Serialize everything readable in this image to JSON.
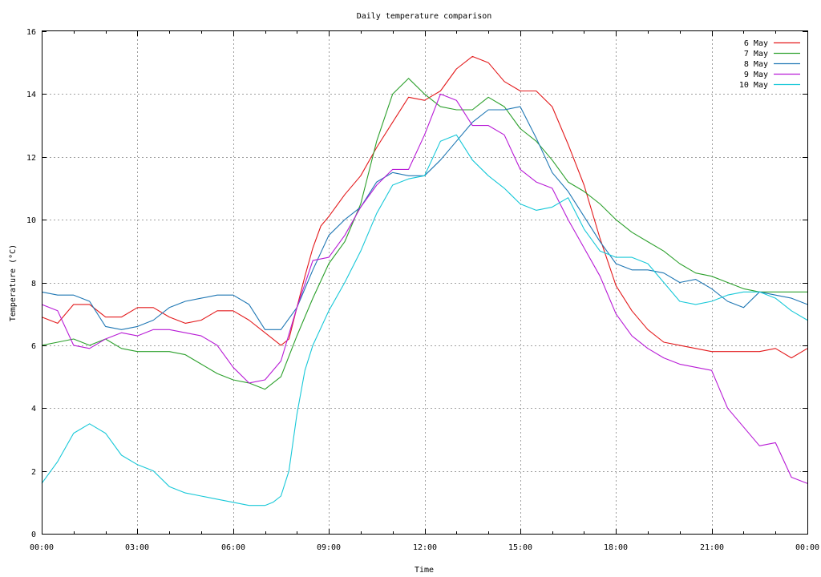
{
  "chart_data": {
    "type": "line",
    "title": "Daily temperature comparison",
    "xlabel": "Time",
    "ylabel": "Temperature (°C)",
    "xlim": [
      0,
      24
    ],
    "ylim": [
      0,
      16
    ],
    "x_ticks": [
      0,
      3,
      6,
      9,
      12,
      15,
      18,
      21,
      24
    ],
    "x_tick_labels": [
      "00:00",
      "03:00",
      "06:00",
      "09:00",
      "12:00",
      "15:00",
      "18:00",
      "21:00",
      "00:00"
    ],
    "y_ticks": [
      0,
      2,
      4,
      6,
      8,
      10,
      12,
      14,
      16
    ],
    "y_tick_labels": [
      "0",
      "2",
      "4",
      "6",
      "8",
      "10",
      "12",
      "14",
      "16"
    ],
    "grid": true,
    "legend_position": "top-right",
    "series": [
      {
        "name": "6 May",
        "color": "#e31a1c",
        "x": [
          0,
          0.5,
          1,
          1.5,
          2,
          2.5,
          3,
          3.5,
          4,
          4.5,
          5,
          5.5,
          6,
          6.5,
          7,
          7.5,
          7.75,
          8,
          8.25,
          8.5,
          8.75,
          9,
          9.5,
          10,
          10.5,
          11,
          11.5,
          12,
          12.5,
          13,
          13.5,
          14,
          14.5,
          15,
          15.5,
          16,
          16.5,
          17,
          17.5,
          18,
          18.5,
          19,
          19.5,
          20,
          20.5,
          21,
          21.5,
          22,
          22.5,
          23,
          23.5,
          24
        ],
        "y": [
          6.9,
          6.7,
          7.3,
          7.3,
          6.9,
          6.9,
          7.2,
          7.2,
          6.9,
          6.7,
          6.8,
          7.1,
          7.1,
          6.8,
          6.4,
          6.0,
          6.2,
          7.2,
          8.2,
          9.1,
          9.8,
          10.1,
          10.8,
          11.4,
          12.3,
          13.1,
          13.9,
          13.8,
          14.1,
          14.8,
          15.2,
          15.0,
          14.4,
          14.1,
          14.1,
          13.6,
          12.4,
          11.1,
          9.4,
          7.9,
          7.1,
          6.5,
          6.1,
          6.0,
          5.9,
          5.8,
          5.8,
          5.8,
          5.8,
          5.9,
          5.6,
          5.9
        ]
      },
      {
        "name": "7 May",
        "color": "#2ca02c",
        "x": [
          0,
          0.5,
          1,
          1.5,
          2,
          2.5,
          3,
          3.5,
          4,
          4.5,
          5,
          5.5,
          6,
          6.5,
          7,
          7.5,
          8,
          8.5,
          9,
          9.5,
          10,
          10.5,
          11,
          11.5,
          12,
          12.5,
          13,
          13.5,
          14,
          14.5,
          15,
          15.5,
          16,
          16.5,
          17,
          17.5,
          18,
          18.5,
          19,
          19.5,
          20,
          20.5,
          21,
          21.5,
          22,
          22.5,
          23,
          23.5,
          24
        ],
        "y": [
          6.0,
          6.1,
          6.2,
          6.0,
          6.2,
          5.9,
          5.8,
          5.8,
          5.8,
          5.7,
          5.4,
          5.1,
          4.9,
          4.8,
          4.6,
          5.0,
          6.3,
          7.5,
          8.6,
          9.3,
          10.5,
          12.5,
          14.0,
          14.5,
          14.0,
          13.6,
          13.5,
          13.5,
          13.9,
          13.6,
          12.9,
          12.5,
          11.9,
          11.2,
          10.9,
          10.5,
          10.0,
          9.6,
          9.3,
          9.0,
          8.6,
          8.3,
          8.2,
          8.0,
          7.8,
          7.7,
          7.7,
          7.7,
          7.7
        ]
      },
      {
        "name": "8 May",
        "color": "#1f77b4",
        "x": [
          0,
          0.5,
          1,
          1.5,
          2,
          2.5,
          3,
          3.5,
          4,
          4.5,
          5,
          5.5,
          6,
          6.5,
          7,
          7.5,
          8,
          8.5,
          9,
          9.5,
          10,
          10.5,
          11,
          11.5,
          12,
          12.5,
          13,
          13.5,
          14,
          14.5,
          15,
          15.5,
          16,
          16.5,
          17,
          17.5,
          18,
          18.5,
          19,
          19.5,
          20,
          20.5,
          21,
          21.5,
          22,
          22.5,
          23,
          23.5,
          24
        ],
        "y": [
          7.7,
          7.6,
          7.6,
          7.4,
          6.6,
          6.5,
          6.6,
          6.8,
          7.2,
          7.4,
          7.5,
          7.6,
          7.6,
          7.3,
          6.5,
          6.5,
          7.2,
          8.4,
          9.5,
          10.0,
          10.4,
          11.2,
          11.5,
          11.4,
          11.4,
          11.9,
          12.5,
          13.1,
          13.5,
          13.5,
          13.6,
          12.6,
          11.5,
          10.9,
          10.1,
          9.3,
          8.6,
          8.4,
          8.4,
          8.3,
          8.0,
          8.1,
          7.8,
          7.4,
          7.2,
          7.7,
          7.6,
          7.5,
          7.3
        ]
      },
      {
        "name": "9 May",
        "color": "#b81bd6",
        "x": [
          0,
          0.5,
          1,
          1.5,
          2,
          2.5,
          3,
          3.5,
          4,
          4.5,
          5,
          5.5,
          6,
          6.5,
          7,
          7.5,
          8,
          8.5,
          9,
          9.5,
          10,
          10.5,
          11,
          11.5,
          12,
          12.5,
          13,
          13.5,
          14,
          14.5,
          15,
          15.5,
          16,
          16.5,
          17,
          17.5,
          18,
          18.5,
          19,
          19.5,
          20,
          20.5,
          21,
          21.5,
          22,
          22.5,
          23,
          23.5,
          24
        ],
        "y": [
          7.3,
          7.1,
          6.0,
          5.9,
          6.2,
          6.4,
          6.3,
          6.5,
          6.5,
          6.4,
          6.3,
          6.0,
          5.3,
          4.8,
          4.9,
          5.5,
          7.2,
          8.7,
          8.8,
          9.5,
          10.4,
          11.1,
          11.6,
          11.6,
          12.7,
          14.0,
          13.8,
          13.0,
          13.0,
          12.7,
          11.6,
          11.2,
          11.0,
          10.0,
          9.1,
          8.2,
          7.0,
          6.3,
          5.9,
          5.6,
          5.4,
          5.3,
          5.2,
          4.0,
          3.4,
          2.8,
          2.9,
          1.8,
          1.6
        ]
      },
      {
        "name": "10 May",
        "color": "#17c8d8",
        "x": [
          0,
          0.5,
          1,
          1.5,
          2,
          2.5,
          3,
          3.5,
          4,
          4.5,
          5,
          5.5,
          6,
          6.5,
          7,
          7.25,
          7.5,
          7.75,
          8,
          8.25,
          8.5,
          9,
          9.5,
          10,
          10.5,
          11,
          11.5,
          12,
          12.5,
          13,
          13.5,
          14,
          14.5,
          15,
          15.5,
          16,
          16.5,
          17,
          17.5,
          18,
          18.5,
          19,
          19.5,
          20,
          20.5,
          21,
          21.5,
          22,
          22.5,
          23,
          23.5,
          24
        ],
        "y": [
          1.6,
          2.3,
          3.2,
          3.5,
          3.2,
          2.5,
          2.2,
          2.0,
          1.5,
          1.3,
          1.2,
          1.1,
          1.0,
          0.9,
          0.9,
          1.0,
          1.2,
          2.0,
          3.8,
          5.2,
          6.0,
          7.1,
          8.0,
          9.0,
          10.2,
          11.1,
          11.3,
          11.4,
          12.5,
          12.7,
          11.9,
          11.4,
          11.0,
          10.5,
          10.3,
          10.4,
          10.7,
          9.7,
          9.0,
          8.8,
          8.8,
          8.6,
          8.0,
          7.4,
          7.3,
          7.4,
          7.6,
          7.7,
          7.7,
          7.5,
          7.1,
          6.8
        ]
      }
    ]
  }
}
